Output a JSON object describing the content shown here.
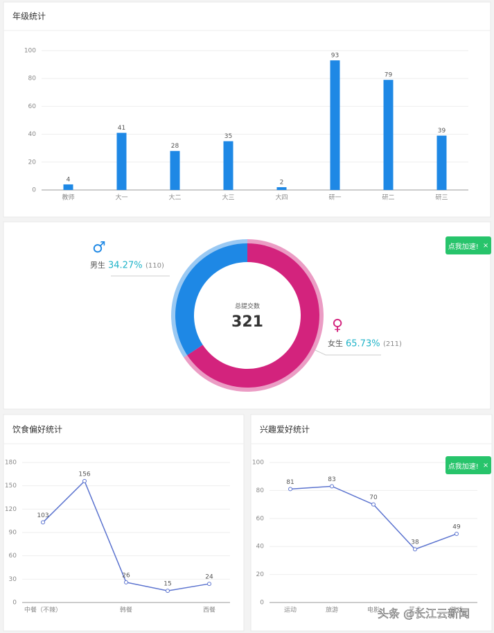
{
  "chart_data": [
    {
      "type": "bar",
      "title": "年级统计",
      "categories": [
        "教师",
        "大一",
        "大二",
        "大三",
        "大四",
        "研一",
        "研二",
        "研三"
      ],
      "values": [
        4,
        41,
        28,
        35,
        2,
        93,
        79,
        39
      ],
      "color": "#1e88e5",
      "ylim": [
        0,
        100
      ],
      "yticks": [
        0,
        20,
        40,
        60,
        80,
        100
      ],
      "grid": true
    },
    {
      "type": "pie",
      "donut": true,
      "center_label": "总提交数",
      "total": 321,
      "categories": [
        "男生",
        "女生"
      ],
      "values": [
        110,
        211
      ],
      "percent_labels": [
        "34.27%",
        "65.73%"
      ],
      "value_labels": [
        "(110)",
        "(211)"
      ],
      "symbols": [
        "♂",
        "♀"
      ],
      "colors": [
        "#1e88e5",
        "#d3237d"
      ],
      "label_color": "#1fb3c8"
    },
    {
      "type": "line",
      "title": "饮食偏好统计",
      "categories": [
        "中餐（不辣）",
        null,
        "韩餐",
        null,
        "西餐"
      ],
      "values": [
        103,
        156,
        26,
        15,
        24
      ],
      "color": "#5b73cf",
      "ylim": [
        0,
        180
      ],
      "yticks": [
        0,
        30,
        60,
        90,
        120,
        150,
        180
      ],
      "grid": true
    },
    {
      "type": "line",
      "title": "兴趣爱好统计",
      "categories": [
        "运动",
        "旅游",
        "电影",
        "艺术",
        "游戏"
      ],
      "values": [
        81,
        83,
        70,
        38,
        49
      ],
      "color": "#5b73cf",
      "ylim": [
        0,
        100
      ],
      "yticks": [
        0,
        20,
        40,
        60,
        80,
        100
      ],
      "grid": true
    }
  ],
  "floating_buttons": [
    {
      "label": "点我加速!",
      "close": "×"
    },
    {
      "label": "点我加速!",
      "close": "×"
    }
  ],
  "watermark": "头条 @长江云新闻"
}
